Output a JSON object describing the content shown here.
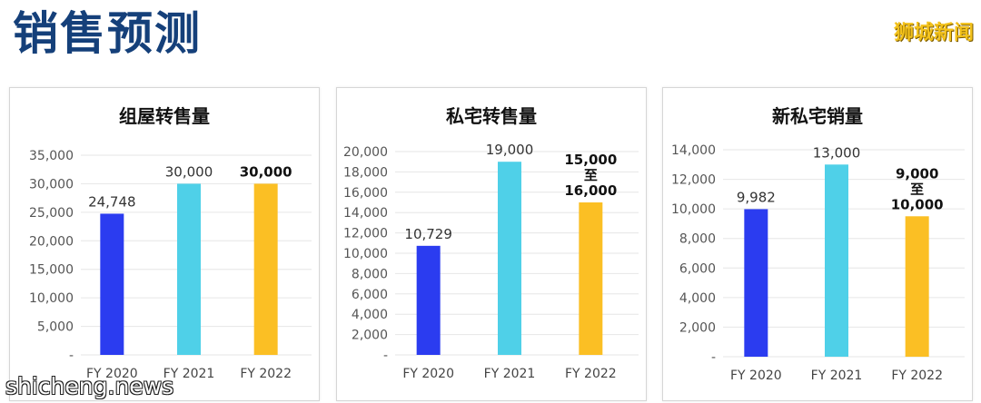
{
  "header": {
    "title": "销售预测",
    "brand": "狮城新闻"
  },
  "watermark": "shicheng.news",
  "colors": {
    "fy2020": "#2b3cf0",
    "fy2021": "#4fd0e8",
    "fy2022": "#fbbf24"
  },
  "chart_data": [
    {
      "type": "bar",
      "title": "组屋转售量",
      "categories": [
        "FY 2020",
        "FY 2021",
        "FY 2022"
      ],
      "values": [
        24748,
        30000,
        30000
      ],
      "data_labels": [
        [
          "24,748"
        ],
        [
          "30,000"
        ],
        [
          "30,000"
        ]
      ],
      "yticks": [
        "-",
        "5,000",
        "10,000",
        "15,000",
        "20,000",
        "25,000",
        "30,000",
        "35,000"
      ],
      "ylim": [
        0,
        35000
      ]
    },
    {
      "type": "bar",
      "title": "私宅转售量",
      "categories": [
        "FY 2020",
        "FY 2021",
        "FY 2022"
      ],
      "values": [
        10729,
        19000,
        15000
      ],
      "range_high": [
        null,
        null,
        16000
      ],
      "data_labels": [
        [
          "10,729"
        ],
        [
          "19,000"
        ],
        [
          "15,000",
          "至",
          "16,000"
        ]
      ],
      "yticks": [
        "-",
        "2,000",
        "4,000",
        "6,000",
        "8,000",
        "10,000",
        "12,000",
        "14,000",
        "16,000",
        "18,000",
        "20,000"
      ],
      "ylim": [
        0,
        20000
      ]
    },
    {
      "type": "bar",
      "title": "新私宅销量",
      "categories": [
        "FY 2020",
        "FY 2021",
        "FY 2022"
      ],
      "values": [
        9982,
        13000,
        9500
      ],
      "range_low": [
        null,
        null,
        9000
      ],
      "range_high": [
        null,
        null,
        10000
      ],
      "data_labels": [
        [
          "9,982"
        ],
        [
          "13,000"
        ],
        [
          "9,000",
          "至",
          "10,000"
        ]
      ],
      "yticks": [
        "-",
        "2,000",
        "4,000",
        "6,000",
        "8,000",
        "10,000",
        "12,000",
        "14,000"
      ],
      "ylim": [
        0,
        14000
      ]
    }
  ]
}
